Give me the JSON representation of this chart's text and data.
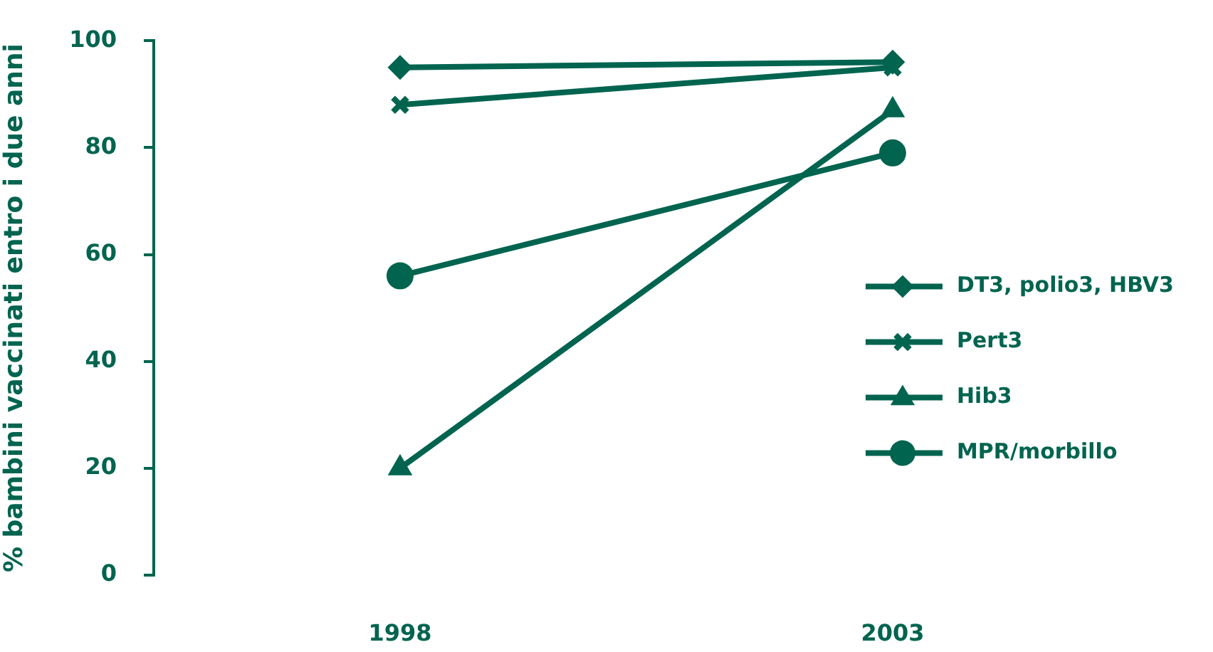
{
  "chart_data": {
    "type": "line",
    "ylabel": "% bambini vaccinati entro i due anni",
    "categories": [
      "1998",
      "2003"
    ],
    "series": [
      {
        "name": "DT3, polio3, HBV3",
        "color": "#00644f",
        "values": [
          95,
          96
        ],
        "marker": "diamond"
      },
      {
        "name": "Pert3",
        "color": "#00644f",
        "values": [
          88,
          95
        ],
        "marker": "cross"
      },
      {
        "name": "Hib3",
        "color": "#00644f",
        "values": [
          20,
          87
        ],
        "marker": "triangle"
      },
      {
        "name": "MPR/morbillo",
        "color": "#00644f",
        "values": [
          56,
          79
        ],
        "marker": "circle"
      }
    ],
    "ylim": [
      0,
      100
    ],
    "yticks": [
      0,
      20,
      40,
      60,
      80,
      100
    ],
    "legend": "right",
    "line_style": "solid"
  }
}
